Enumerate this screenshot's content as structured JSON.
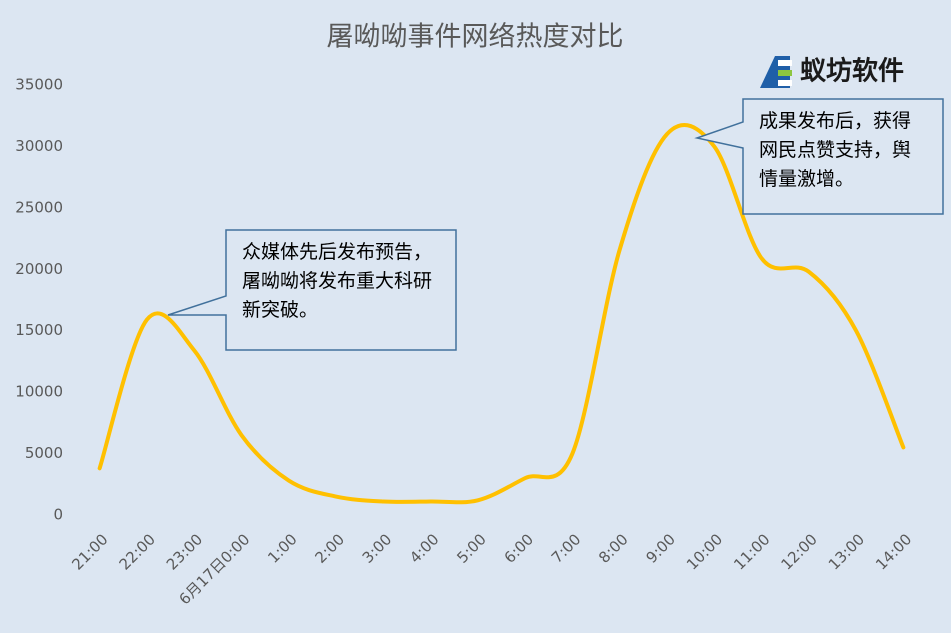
{
  "chart_data": {
    "type": "line",
    "title": "屠呦呦事件网络热度对比",
    "logo": "蚁坊软件",
    "categories": [
      "21:00",
      "22:00",
      "23:00",
      "6月17日0:00",
      "1:00",
      "2:00",
      "3:00",
      "4:00",
      "5:00",
      "6:00",
      "7:00",
      "8:00",
      "9:00",
      "10:00",
      "11:00",
      "12:00",
      "13:00",
      "14:00"
    ],
    "series": [
      {
        "name": "网络热度",
        "color": "#ffc000",
        "values": [
          3800,
          15900,
          13400,
          6500,
          2800,
          1500,
          1100,
          1100,
          1200,
          3000,
          5000,
          21600,
          31000,
          30000,
          20900,
          19800,
          15000,
          5500
        ]
      }
    ],
    "ylim": [
      0,
      35000
    ],
    "yticks": [
      0,
      5000,
      10000,
      15000,
      20000,
      25000,
      30000,
      35000
    ],
    "annotations": [
      {
        "text": "众媒体先后发布预告，屠呦呦将发布重大科研新突破。"
      },
      {
        "text": "成果发布后，获得网民点赞支持，舆情量激增。"
      }
    ]
  }
}
